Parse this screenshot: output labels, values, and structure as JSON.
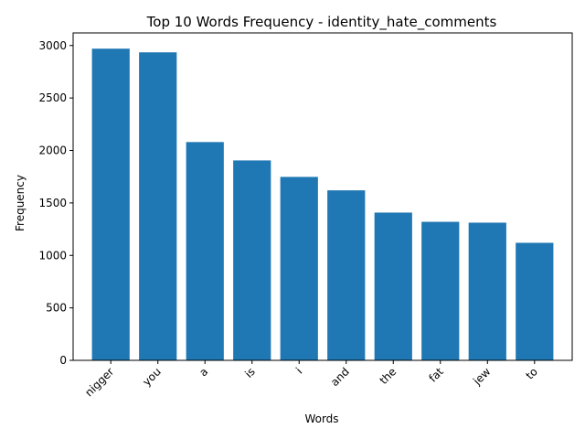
{
  "chart_data": {
    "type": "bar",
    "title": "Top 10 Words Frequency - identity_hate_comments",
    "xlabel": "Words",
    "ylabel": "Frequency",
    "categories": [
      "nigger",
      "you",
      "a",
      "is",
      "i",
      "and",
      "the",
      "fat",
      "jew",
      "to"
    ],
    "values": [
      2970,
      2935,
      2080,
      1905,
      1748,
      1620,
      1408,
      1320,
      1312,
      1120
    ],
    "ylim": [
      0,
      3120
    ],
    "yticks": [
      0,
      500,
      1000,
      1500,
      2000,
      2500,
      3000
    ],
    "bar_color": "#1f77b4",
    "grid": false,
    "legend": "none"
  }
}
